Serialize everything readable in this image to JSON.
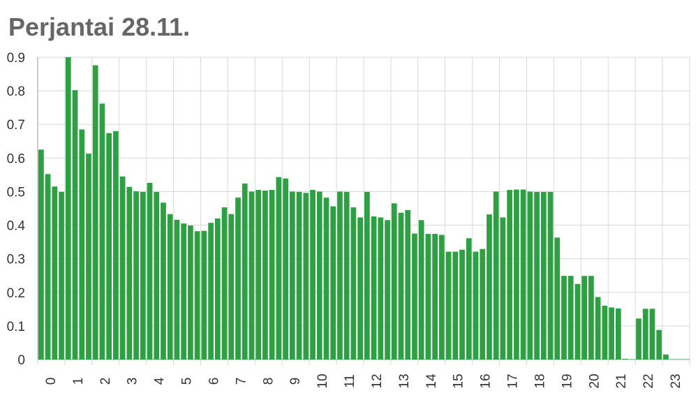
{
  "title": "Perjantai 28.11.",
  "colors": {
    "bar": "#2ea043",
    "grid": "#d9d9d9",
    "axis": "#999999",
    "text": "#333333"
  },
  "chart_data": {
    "type": "bar",
    "title": "Perjantai 28.11.",
    "xlabel": "",
    "ylabel": "",
    "ylim": [
      0,
      0.9
    ],
    "yticks": [
      "0",
      "0.1",
      "0.2",
      "0.3",
      "0.4",
      "0.5",
      "0.6",
      "0.7",
      "0.8",
      "0.9"
    ],
    "xticks": [
      "0",
      "1",
      "2",
      "3",
      "4",
      "5",
      "6",
      "7",
      "8",
      "9",
      "10",
      "11",
      "12",
      "13",
      "14",
      "15",
      "16",
      "17",
      "18",
      "19",
      "20",
      "21",
      "22",
      "23"
    ],
    "grid": true,
    "bars_per_hour": 4,
    "values": [
      0.625,
      0.552,
      0.515,
      0.499,
      0.9,
      0.802,
      0.685,
      0.613,
      0.876,
      0.762,
      0.674,
      0.68,
      0.545,
      0.514,
      0.501,
      0.499,
      0.526,
      0.499,
      0.467,
      0.433,
      0.416,
      0.405,
      0.399,
      0.382,
      0.383,
      0.407,
      0.42,
      0.453,
      0.433,
      0.482,
      0.524,
      0.5,
      0.505,
      0.503,
      0.505,
      0.543,
      0.539,
      0.5,
      0.499,
      0.496,
      0.505,
      0.5,
      0.482,
      0.456,
      0.5,
      0.499,
      0.453,
      0.423,
      0.499,
      0.426,
      0.423,
      0.415,
      0.465,
      0.437,
      0.445,
      0.375,
      0.415,
      0.374,
      0.374,
      0.371,
      0.321,
      0.321,
      0.327,
      0.361,
      0.321,
      0.329,
      0.432,
      0.5,
      0.423,
      0.505,
      0.506,
      0.506,
      0.5,
      0.499,
      0.499,
      0.499,
      0.363,
      0.249,
      0.249,
      0.225,
      0.249,
      0.249,
      0.186,
      0.16,
      0.155,
      0.152,
      0.002,
      0.001,
      0.122,
      0.151,
      0.151,
      0.088,
      0.015,
      0.001,
      0.001,
      0.001
    ]
  }
}
